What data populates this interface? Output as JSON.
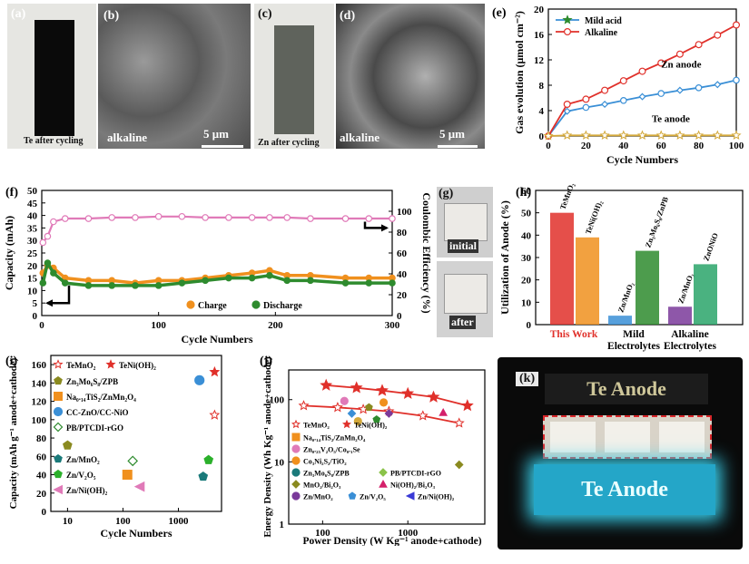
{
  "panel_labels": {
    "a": "(a)",
    "b": "(b)",
    "c": "(c)",
    "d": "(d)",
    "e": "(e)",
    "f": "(f)",
    "g": "(g)",
    "h": "(h)",
    "i": "(i)",
    "j": "(j)",
    "k": "(k)"
  },
  "photos": {
    "a_caption": "Te after cycling",
    "b_caption": "alkaline",
    "b_scale": "5 μm",
    "c_caption": "Zn after cycling",
    "d_caption": "alkaline",
    "d_scale": "5 μm",
    "g_top": "initial",
    "g_bottom": "after",
    "k_top": "Te Anode",
    "k_bottom": "Te Anode"
  },
  "colors": {
    "blue": "#3a8fd6",
    "red": "#e0302a",
    "yellow": "#d4a93a",
    "orange": "#f0901e",
    "green": "#2e8b2e",
    "pink": "#e07ab8"
  },
  "chart_data": [
    {
      "id": "e",
      "type": "line",
      "xlabel": "Cycle Numbers",
      "ylabel": "Gas evolution (μmol cm⁻²)",
      "xlim": [
        0,
        100
      ],
      "ylim": [
        0,
        20
      ],
      "xticks": [
        0,
        20,
        40,
        60,
        80,
        100
      ],
      "yticks": [
        0,
        4,
        8,
        12,
        16,
        20
      ],
      "annotations": [
        "Zn anode",
        "Te anode"
      ],
      "series": [
        {
          "name": "Mild acid",
          "color": "#3a8fd6",
          "x": [
            0,
            10,
            20,
            30,
            40,
            50,
            60,
            70,
            80,
            90,
            100
          ],
          "y": [
            0,
            3.9,
            4.5,
            5.0,
            5.6,
            6.2,
            6.7,
            7.2,
            7.6,
            8.1,
            8.8
          ]
        },
        {
          "name": "Alkaline",
          "color": "#e0302a",
          "x": [
            0,
            10,
            20,
            30,
            40,
            50,
            60,
            70,
            80,
            90,
            100
          ],
          "y": [
            0,
            5.0,
            5.8,
            7.2,
            8.7,
            10.2,
            11.5,
            12.9,
            14.4,
            15.9,
            17.5
          ]
        },
        {
          "name": "",
          "color": "#d4a93a",
          "x": [
            0,
            10,
            20,
            30,
            40,
            50,
            60,
            70,
            80,
            90,
            100
          ],
          "y": [
            0,
            0.1,
            0.1,
            0.1,
            0.1,
            0.1,
            0.1,
            0.1,
            0.1,
            0.1,
            0.1
          ]
        }
      ]
    },
    {
      "id": "f",
      "type": "scatter",
      "xlabel": "Cycle Numbers",
      "ylabel": "Capacity (mAh)",
      "y2label": "Coulombic Efficiency (%)",
      "xlim": [
        0,
        300
      ],
      "ylim": [
        0,
        50
      ],
      "y2lim": [
        0,
        120
      ],
      "xticks": [
        0,
        100,
        200,
        300
      ],
      "yticks": [
        0,
        5,
        10,
        15,
        20,
        25,
        30,
        35,
        40,
        45,
        50
      ],
      "y2ticks": [
        0,
        20,
        40,
        60,
        80,
        100
      ],
      "legend": [
        "Charge",
        "Discharge"
      ],
      "series": [
        {
          "name": "Charge",
          "color": "#f0901e",
          "x": [
            1,
            5,
            10,
            20,
            40,
            60,
            80,
            100,
            120,
            140,
            160,
            180,
            195,
            210,
            230,
            260,
            280,
            300
          ],
          "y": [
            17,
            20,
            19,
            15,
            14,
            14,
            13,
            14,
            14,
            15,
            16,
            17,
            18,
            16,
            16,
            15,
            15,
            15
          ]
        },
        {
          "name": "Discharge",
          "color": "#2e8b2e",
          "x": [
            1,
            5,
            10,
            20,
            40,
            60,
            80,
            100,
            120,
            140,
            160,
            180,
            195,
            210,
            230,
            260,
            280,
            300
          ],
          "y": [
            13,
            21,
            17,
            13,
            12,
            12,
            12,
            12,
            13,
            14,
            15,
            15,
            16,
            14,
            14,
            13,
            13,
            13
          ]
        },
        {
          "name": "",
          "color": "#e07ab8",
          "axis": "y2",
          "x": [
            1,
            5,
            10,
            20,
            40,
            60,
            80,
            100,
            120,
            140,
            160,
            180,
            195,
            210,
            230,
            260,
            280,
            300
          ],
          "y": [
            70,
            76,
            90,
            93,
            93,
            94,
            94,
            95,
            95,
            94,
            94,
            94,
            94,
            94,
            93,
            93,
            93,
            93
          ]
        }
      ]
    },
    {
      "id": "h",
      "type": "bar",
      "ylabel": "Utilization of Anode (%)",
      "ylim": [
        0,
        60
      ],
      "yticks": [
        0,
        10,
        20,
        30,
        40,
        50,
        60
      ],
      "groups": [
        "This Work",
        "Mild Electrolytes",
        "Alkaline Electrolytes"
      ],
      "categories": [
        "TeMnO₂",
        "TeNi(OH)₂",
        "Zn/MnO₂",
        "Zn₃Mo₆S₈/ZnPB",
        "Zn/MnO₂",
        "ZnONiO"
      ],
      "values": [
        50,
        39,
        4,
        33,
        8,
        27
      ],
      "bar_colors": [
        "#e0302a",
        "#f0901e",
        "#3a8fd6",
        "#2e8b2e",
        "#7a3a9a",
        "#2aa56a"
      ]
    },
    {
      "id": "i",
      "type": "scatter",
      "xlabel": "Cycle Numbers",
      "ylabel": "Capacity (mAh g⁻¹ anode+cathode)",
      "xscale": "log",
      "xlim": [
        5,
        6000
      ],
      "ylim": [
        0,
        170
      ],
      "xticks": [
        10,
        100,
        1000
      ],
      "yticks": [
        0,
        20,
        40,
        60,
        80,
        100,
        120,
        140,
        160
      ],
      "legend": [
        "TeMnO₂",
        "TeNi(OH)₂",
        "Zn₃Mo₆S₈/ZPB",
        "Na₀.₁₄TiS₂/ZnMn₂O₄",
        "CC-ZnO/CC-NiO",
        "PB/PTCDI-rGO",
        "Zn/MnO₂",
        "Zn/V₂O₅",
        "Zn/Ni(OH)₂"
      ],
      "series": [
        {
          "name": "TeMnO₂",
          "color": "#e0302a",
          "x": [
            4500
          ],
          "y": [
            105
          ]
        },
        {
          "name": "TeNi(OH)₂",
          "color": "#e0302a",
          "x": [
            4500
          ],
          "y": [
            152
          ]
        },
        {
          "name": "Zn₃Mo₆S₈/ZPB",
          "color": "#8a8a20",
          "x": [
            10
          ],
          "y": [
            72
          ]
        },
        {
          "name": "Na₀.₁₄TiS₂/ZnMn₂O₄",
          "color": "#f0901e",
          "x": [
            120
          ],
          "y": [
            40
          ]
        },
        {
          "name": "CC-ZnO/CC-NiO",
          "color": "#3a8fd6",
          "x": [
            2400
          ],
          "y": [
            143
          ]
        },
        {
          "name": "PB/PTCDI-rGO",
          "color": "#2e8b2e",
          "x": [
            150
          ],
          "y": [
            55
          ]
        },
        {
          "name": "Zn/MnO₂",
          "color": "#1a7a7a",
          "x": [
            2800
          ],
          "y": [
            38
          ]
        },
        {
          "name": "Zn/V₂O₅",
          "color": "#2bb02b",
          "x": [
            3500
          ],
          "y": [
            56
          ]
        },
        {
          "name": "Zn/Ni(OH)₂",
          "color": "#e07ab8",
          "x": [
            200
          ],
          "y": [
            27
          ]
        }
      ]
    },
    {
      "id": "j",
      "type": "scatter",
      "xlabel": "Power Density (W Kg⁻¹ anode+cathode)",
      "ylabel": "Energy Density (Wh Kg⁻¹ anode+cathode)",
      "xscale": "log",
      "yscale": "log",
      "xlim": [
        40,
        8000
      ],
      "ylim": [
        1,
        300
      ],
      "xticks": [
        100,
        1000
      ],
      "yticks": [
        1,
        10,
        100
      ],
      "legend": [
        "TeMnO₂",
        "TeNi(OH)₂",
        "Na₀.₁₄TiS₂/ZnMn₂O₄",
        "Zn₀.₂₅V₂O₅/Co₀.₁Se",
        "Co₃Ni₂S₂/TiO₂",
        "Zn₃Mo₆S₈/ZPB",
        "PB/PTCDI-rGO",
        "MnO₂/Bi₂O₃",
        "Ni(OH)₂/Bi₂O₃",
        "Zn/MnO₂",
        "Zn/V₂O₅",
        "Zn/Ni(OH)₂"
      ],
      "series": [
        {
          "name": "TeMnO₂",
          "color": "#e0302a",
          "x": [
            60,
            150,
            300,
            600,
            1500,
            4000
          ],
          "y": [
            80,
            75,
            70,
            65,
            55,
            42
          ]
        },
        {
          "name": "TeNi(OH)₂",
          "color": "#e0302a",
          "x": [
            110,
            250,
            500,
            1000,
            2000,
            5000
          ],
          "y": [
            170,
            155,
            140,
            125,
            110,
            80
          ]
        }
      ]
    }
  ]
}
